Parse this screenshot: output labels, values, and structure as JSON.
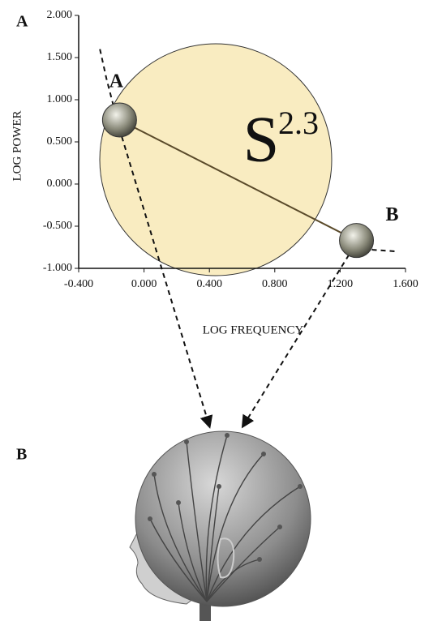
{
  "chart_data": {
    "type": "line",
    "panel_label": "A",
    "second_panel_label": "B",
    "xlabel": "LOG FREQUENCY",
    "ylabel": "LOG POWER",
    "annotation_base": "S",
    "annotation_exponent": "2.3",
    "xlim": [
      -0.4,
      1.6
    ],
    "ylim": [
      -1.0,
      2.0
    ],
    "xticks": [
      {
        "value": -0.4,
        "label": "-0.400"
      },
      {
        "value": 0,
        "label": "0.000"
      },
      {
        "value": 0.4,
        "label": "0.400"
      },
      {
        "value": 0.8,
        "label": "0.800"
      },
      {
        "value": 1.2,
        "label": "1.200"
      },
      {
        "value": 1.6,
        "label": "1.600"
      }
    ],
    "yticks": [
      {
        "value": -1.0,
        "label": "-1.000"
      },
      {
        "value": -0.5,
        "label": "-0.500"
      },
      {
        "value": 0,
        "label": "0.000"
      },
      {
        "value": 0.5,
        "label": "0.500"
      },
      {
        "value": 1.0,
        "label": "1.000"
      },
      {
        "value": 1.5,
        "label": "1.500"
      },
      {
        "value": 2.0,
        "label": "2.000"
      }
    ],
    "series": [
      {
        "color": "#5a4a2a",
        "dash": false,
        "x": [
          -0.15,
          1.3
        ],
        "values": [
          0.76,
          -0.67
        ]
      },
      {
        "color": "#111111",
        "dash": true,
        "x": [
          -0.27,
          -0.23,
          -0.19,
          -0.15,
          0.6,
          1.3,
          1.4,
          1.55
        ],
        "values": [
          1.6,
          1.25,
          0.95,
          0.76,
          null,
          -0.67,
          -0.78,
          -0.8
        ]
      }
    ],
    "points": {
      "x": [
        -0.15,
        1.3
      ],
      "y": [
        0.76,
        -0.67
      ],
      "labels": [
        "A",
        "B"
      ]
    }
  }
}
